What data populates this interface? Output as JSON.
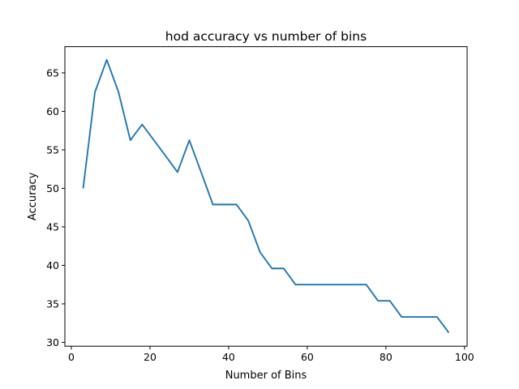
{
  "chart_data": {
    "type": "line",
    "title": "hod accuracy vs number of bins",
    "xlabel": "Number of Bins",
    "ylabel": "Accuracy",
    "xlim": [
      -1.65,
      100.65
    ],
    "ylim": [
      29.5,
      68.4
    ],
    "xticks": [
      0,
      20,
      40,
      60,
      80,
      100
    ],
    "yticks": [
      30,
      35,
      40,
      45,
      50,
      55,
      60,
      65
    ],
    "grid": false,
    "color": "#1f77b4",
    "series": [
      {
        "x": [
          3,
          6,
          9,
          12,
          15,
          18,
          21,
          24,
          27,
          30,
          33,
          36,
          39,
          42,
          45,
          48,
          51,
          54,
          57,
          60,
          63,
          66,
          69,
          72,
          75,
          78,
          81,
          84,
          87,
          90,
          93,
          96
        ],
        "values": [
          50.0,
          62.5,
          66.7,
          62.5,
          56.25,
          58.3,
          56.25,
          54.2,
          52.1,
          56.25,
          52.1,
          47.9,
          47.9,
          47.9,
          45.8,
          41.7,
          39.6,
          39.6,
          37.5,
          37.5,
          37.5,
          37.5,
          37.5,
          37.5,
          37.5,
          35.4,
          35.4,
          33.3,
          33.3,
          33.3,
          33.3,
          31.25
        ]
      }
    ]
  }
}
